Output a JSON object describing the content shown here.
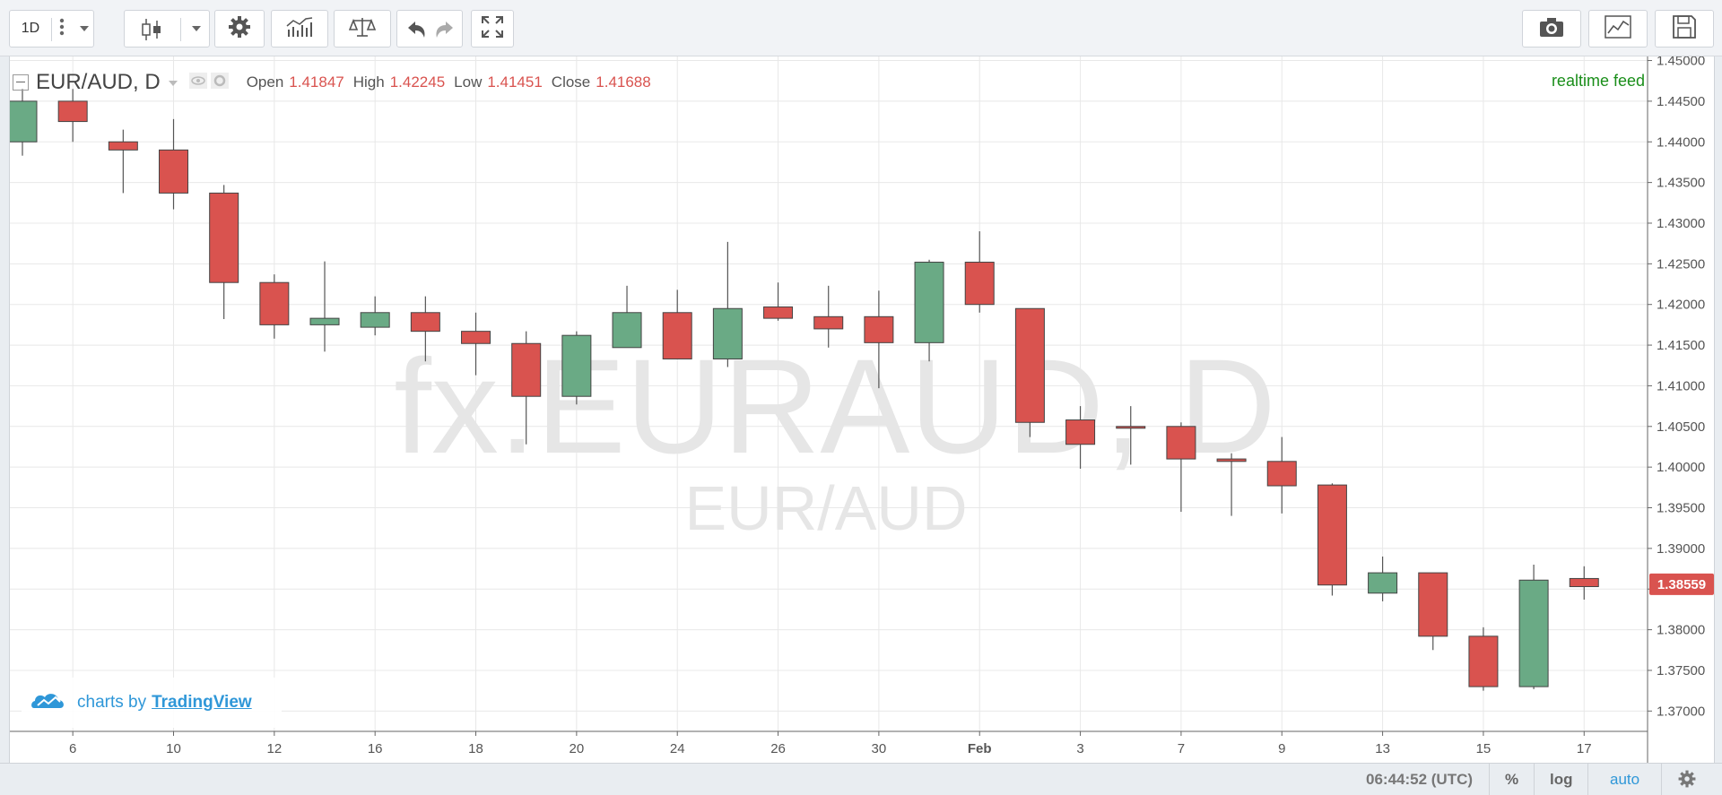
{
  "toolbar": {
    "interval_label": "1D",
    "icons": [
      "more-vertical-icon",
      "chevron-down-icon",
      "candlestick-icon",
      "chevron-down-icon",
      "gear-icon",
      "indicators-icon",
      "compare-icon",
      "undo-icon",
      "redo-icon",
      "fullscreen-icon",
      "camera-icon",
      "line-chart-icon",
      "save-icon"
    ]
  },
  "legend": {
    "symbol": "EUR/AUD, D",
    "open_label": "Open",
    "open": "1.41847",
    "high_label": "High",
    "high": "1.42245",
    "low_label": "Low",
    "low": "1.41451",
    "close_label": "Close",
    "close": "1.41688",
    "value_color": "#d9534f"
  },
  "watermark": {
    "line1": "fx:EURAUD, D",
    "line2": "EUR/AUD"
  },
  "realtime_label": "realtime feed",
  "credit": {
    "prefix": "charts by",
    "brand": "TradingView"
  },
  "bottombar": {
    "time": "06:44:52 (UTC)",
    "percent": "%",
    "log": "log",
    "auto": "auto"
  },
  "colors": {
    "up": "#6aaa85",
    "down": "#d9534f",
    "last_price_bg": "#d9534f"
  },
  "chart_data": {
    "type": "candlestick",
    "ylim": [
      1.3675,
      1.4505
    ],
    "y_ticks": [
      "1.45000",
      "1.44500",
      "1.44000",
      "1.43500",
      "1.43000",
      "1.42500",
      "1.42000",
      "1.41500",
      "1.41000",
      "1.40500",
      "1.40000",
      "1.39500",
      "1.39000",
      "1.38500",
      "1.38000",
      "1.37500",
      "1.37000"
    ],
    "x_ticks": [
      {
        "label": "6",
        "index": 1
      },
      {
        "label": "10",
        "index": 3
      },
      {
        "label": "12",
        "index": 5
      },
      {
        "label": "16",
        "index": 7
      },
      {
        "label": "18",
        "index": 9
      },
      {
        "label": "20",
        "index": 11
      },
      {
        "label": "24",
        "index": 13
      },
      {
        "label": "26",
        "index": 15
      },
      {
        "label": "30",
        "index": 17
      },
      {
        "label": "Feb",
        "index": 19
      },
      {
        "label": "3",
        "index": 21
      },
      {
        "label": "7",
        "index": 23
      },
      {
        "label": "9",
        "index": 25
      },
      {
        "label": "13",
        "index": 27
      },
      {
        "label": "15",
        "index": 29
      },
      {
        "label": "17",
        "index": 31
      }
    ],
    "last_price": "1.38559",
    "candles": [
      {
        "o": 1.44,
        "h": 1.4465,
        "l": 1.4383,
        "c": 1.445
      },
      {
        "o": 1.445,
        "h": 1.4465,
        "l": 1.44,
        "c": 1.4425
      },
      {
        "o": 1.44,
        "h": 1.4415,
        "l": 1.4337,
        "c": 1.439
      },
      {
        "o": 1.439,
        "h": 1.4428,
        "l": 1.4317,
        "c": 1.4337
      },
      {
        "o": 1.4337,
        "h": 1.4347,
        "l": 1.4182,
        "c": 1.4227
      },
      {
        "o": 1.4227,
        "h": 1.4237,
        "l": 1.4158,
        "c": 1.4175
      },
      {
        "o": 1.4175,
        "h": 1.4253,
        "l": 1.4142,
        "c": 1.4183
      },
      {
        "o": 1.4172,
        "h": 1.421,
        "l": 1.4162,
        "c": 1.419
      },
      {
        "o": 1.419,
        "h": 1.421,
        "l": 1.413,
        "c": 1.4167
      },
      {
        "o": 1.4167,
        "h": 1.419,
        "l": 1.4113,
        "c": 1.4152
      },
      {
        "o": 1.4152,
        "h": 1.4167,
        "l": 1.4028,
        "c": 1.4087
      },
      {
        "o": 1.4087,
        "h": 1.4167,
        "l": 1.4077,
        "c": 1.4162
      },
      {
        "o": 1.4147,
        "h": 1.4223,
        "l": 1.4147,
        "c": 1.419
      },
      {
        "o": 1.419,
        "h": 1.4218,
        "l": 1.4133,
        "c": 1.4133
      },
      {
        "o": 1.4133,
        "h": 1.4277,
        "l": 1.4123,
        "c": 1.4195
      },
      {
        "o": 1.4197,
        "h": 1.4227,
        "l": 1.418,
        "c": 1.4183
      },
      {
        "o": 1.4185,
        "h": 1.4223,
        "l": 1.4147,
        "c": 1.417
      },
      {
        "o": 1.4185,
        "h": 1.4217,
        "l": 1.4097,
        "c": 1.4153
      },
      {
        "o": 1.4153,
        "h": 1.4255,
        "l": 1.413,
        "c": 1.4252
      },
      {
        "o": 1.4252,
        "h": 1.429,
        "l": 1.419,
        "c": 1.42
      },
      {
        "o": 1.4195,
        "h": 1.4195,
        "l": 1.4037,
        "c": 1.4055
      },
      {
        "o": 1.4058,
        "h": 1.4075,
        "l": 1.3998,
        "c": 1.4028
      },
      {
        "o": 1.405,
        "h": 1.4075,
        "l": 1.4003,
        "c": 1.4048
      },
      {
        "o": 1.405,
        "h": 1.4055,
        "l": 1.3945,
        "c": 1.401
      },
      {
        "o": 1.401,
        "h": 1.4017,
        "l": 1.394,
        "c": 1.4007
      },
      {
        "o": 1.4007,
        "h": 1.4037,
        "l": 1.3943,
        "c": 1.3977
      },
      {
        "o": 1.3978,
        "h": 1.398,
        "l": 1.3842,
        "c": 1.3855
      },
      {
        "o": 1.3845,
        "h": 1.389,
        "l": 1.3835,
        "c": 1.387
      },
      {
        "o": 1.387,
        "h": 1.387,
        "l": 1.3775,
        "c": 1.3792
      },
      {
        "o": 1.3792,
        "h": 1.3803,
        "l": 1.3725,
        "c": 1.373
      },
      {
        "o": 1.373,
        "h": 1.388,
        "l": 1.3727,
        "c": 1.3861
      },
      {
        "o": 1.3863,
        "h": 1.3878,
        "l": 1.3837,
        "c": 1.3853
      }
    ]
  }
}
